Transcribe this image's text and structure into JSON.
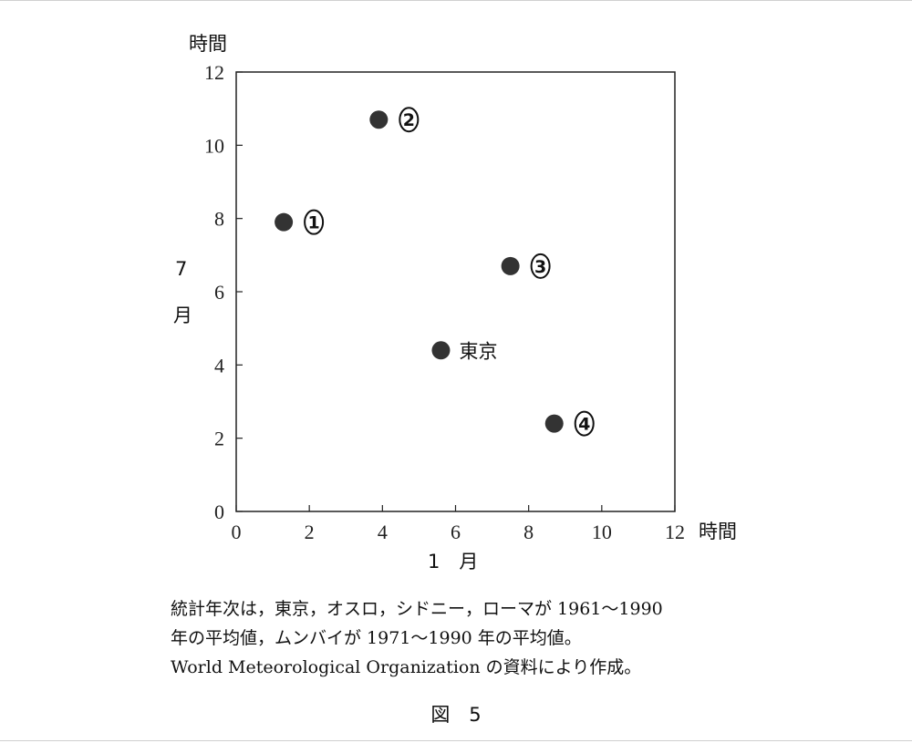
{
  "chart_data": {
    "type": "scatter",
    "title": "",
    "xlabel": "1　月",
    "xunit": "時間",
    "ylabel": "7月",
    "yunit": "時間",
    "xlim": [
      0,
      12
    ],
    "ylim": [
      0,
      12
    ],
    "xticks": [
      0,
      2,
      4,
      6,
      8,
      10,
      12
    ],
    "yticks": [
      0,
      2,
      4,
      6,
      8,
      10,
      12
    ],
    "grid": false,
    "points": [
      {
        "label": "1",
        "x": 1.3,
        "y": 7.9
      },
      {
        "label": "2",
        "x": 3.9,
        "y": 10.7
      },
      {
        "label": "3",
        "x": 7.5,
        "y": 6.7
      },
      {
        "label": "東京",
        "x": 5.6,
        "y": 4.4
      },
      {
        "label": "4",
        "x": 8.7,
        "y": 2.4
      }
    ]
  },
  "notes": [
    "統計年次は，東京，オスロ，シドニー，ローマが 1961～1990",
    "年の平均値，ムンバイが 1971～1990 年の平均値。",
    "World Meteorological Organization の資料により作成。"
  ],
  "figure_label": "図　5"
}
